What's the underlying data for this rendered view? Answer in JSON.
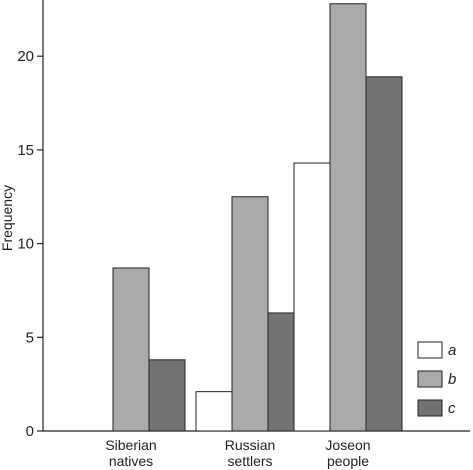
{
  "chart_data": {
    "type": "bar",
    "categories": [
      [
        "Siberian",
        "natives"
      ],
      [
        "Russian",
        "settlers"
      ],
      [
        "Joseon",
        "people"
      ]
    ],
    "series": [
      {
        "name": "a",
        "values": [
          0,
          2.1,
          14.3
        ],
        "color": "#ffffff"
      },
      {
        "name": "b",
        "values": [
          8.7,
          12.5,
          22.8
        ],
        "color": "#aaaaaa"
      },
      {
        "name": "c",
        "values": [
          3.8,
          6.3,
          18.9
        ],
        "color": "#737373"
      }
    ],
    "ylabel": "Frequency",
    "ylim": [
      0,
      23
    ],
    "yticks": [
      0,
      5,
      10,
      15,
      20
    ],
    "legend_position": "bottom-right",
    "grid": false
  }
}
